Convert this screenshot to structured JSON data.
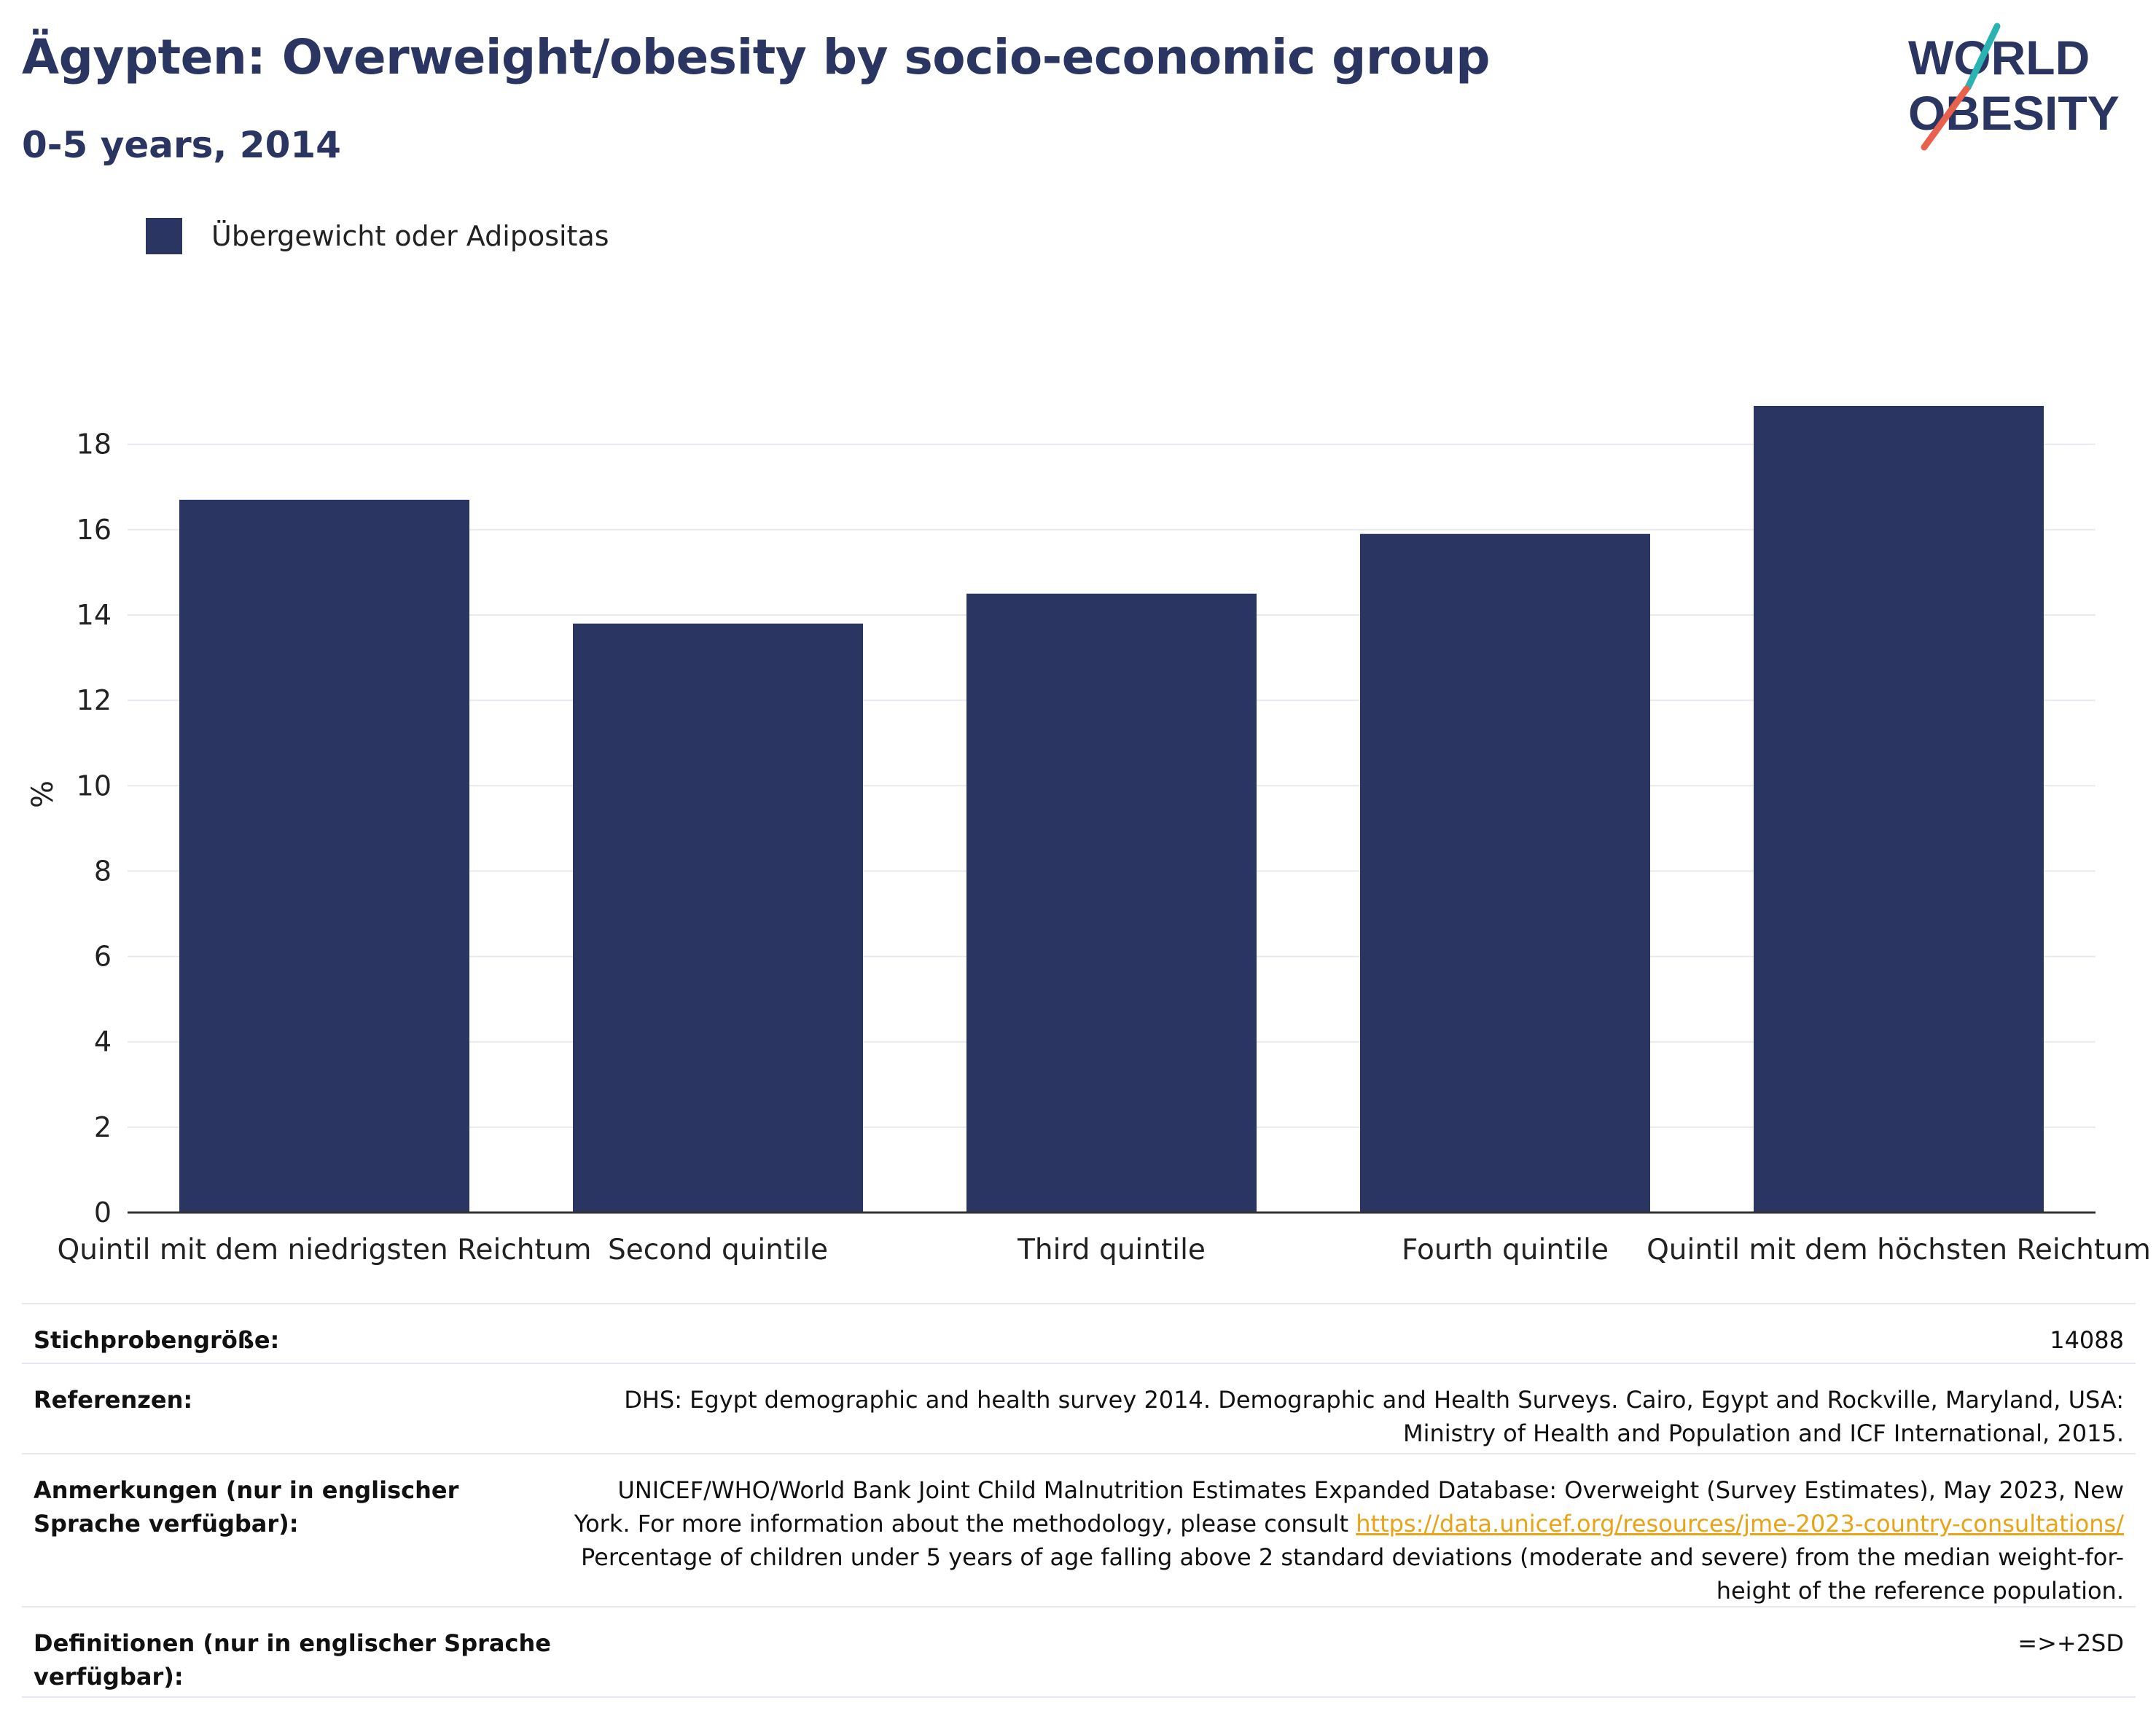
{
  "header": {
    "title": "Ägypten: Overweight/obesity by socio-economic group",
    "subtitle": "0-5 years, 2014",
    "logo": {
      "line1": "WORLD",
      "line2": "OBESITY",
      "accent_teal": "#2ab3b1",
      "accent_coral": "#e8614d",
      "text_color": "#2b3562"
    }
  },
  "legend": {
    "items": [
      {
        "label": "Übergewicht oder Adipositas",
        "color": "#2b3562"
      }
    ]
  },
  "chart_data": {
    "type": "bar",
    "categories": [
      "Quintil mit dem niedrigsten Reichtum",
      "Second quintile",
      "Third quintile",
      "Fourth quintile",
      "Quintil mit dem höchsten Reichtum"
    ],
    "series": [
      {
        "name": "Übergewicht oder Adipositas",
        "values": [
          16.7,
          13.8,
          14.5,
          15.9,
          18.9
        ],
        "color": "#2b3562"
      }
    ],
    "ylabel": "%",
    "yticks": [
      0,
      2,
      4,
      6,
      8,
      10,
      12,
      14,
      16,
      18
    ],
    "ylim": [
      0,
      19.6
    ],
    "grid": true
  },
  "metadata": {
    "rows": [
      {
        "key": "Stichprobengröße:",
        "value_lines": [
          "14088"
        ]
      },
      {
        "key": "Referenzen:",
        "value_lines": [
          "DHS: Egypt demographic and health survey 2014. Demographic and Health Surveys. Cairo, Egypt and Rockville, Maryland, USA:",
          "Ministry of Health and Population and ICF International, 2015."
        ]
      },
      {
        "key": "Anmerkungen (nur in englischer Sprache verfügbar):",
        "value_lines": [
          "UNICEF/WHO/World Bank Joint Child Malnutrition Estimates Expanded Database: Overweight (Survey Estimates), May 2023, New",
          "York. For more information about the methodology, please consult ",
          "Percentage of children under 5 years of age falling above 2 standard deviations (moderate and severe) from the median weight-for-",
          "height of the reference population."
        ],
        "link": "https://data.unicef.org/resources/jme-2023-country-consultations/"
      },
      {
        "key": "Definitionen (nur in englischer Sprache verfügbar):",
        "value_lines": [
          "=>+2SD"
        ]
      }
    ]
  }
}
